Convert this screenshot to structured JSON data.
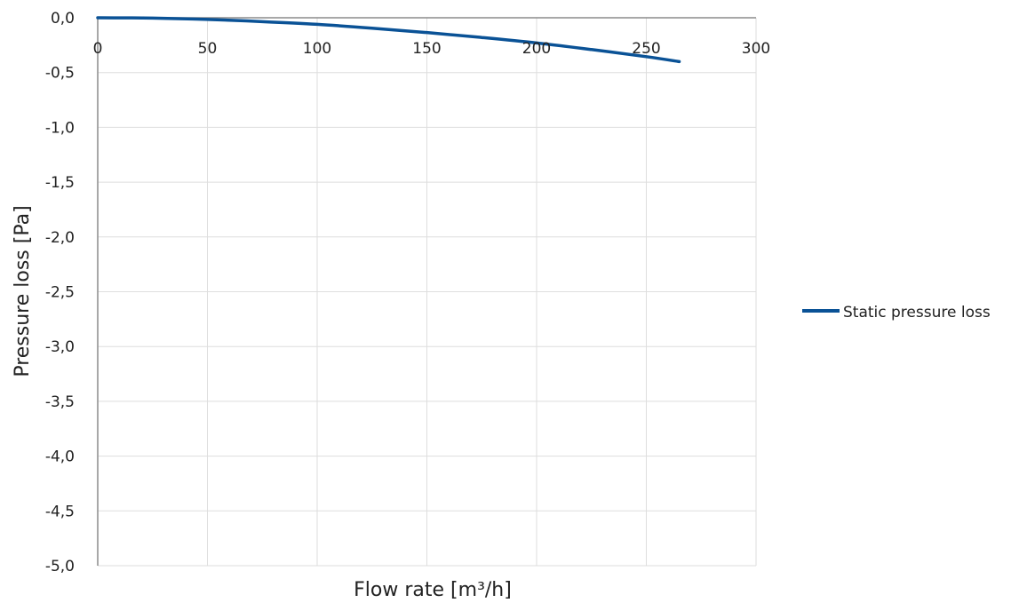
{
  "chart_data": {
    "type": "line",
    "title": "",
    "xlabel": "Flow rate [m³/h]",
    "ylabel": "Pressure loss [Pa]",
    "xlim": [
      0,
      300
    ],
    "ylim": [
      -5.0,
      0.0
    ],
    "x_ticks": [
      0,
      50,
      100,
      150,
      200,
      250,
      300
    ],
    "x_tick_labels": [
      "0",
      "50",
      "100",
      "150",
      "200",
      "250",
      "300"
    ],
    "y_ticks": [
      0.0,
      -0.5,
      -1.0,
      -1.5,
      -2.0,
      -2.5,
      -3.0,
      -3.5,
      -4.0,
      -4.5,
      -5.0
    ],
    "y_tick_labels": [
      "0,0",
      "-0,5",
      "-1,0",
      "-1,5",
      "-2,0",
      "-2,5",
      "-3,0",
      "-3,5",
      "-4,0",
      "-4,5",
      "-5,0"
    ],
    "grid": true,
    "legend_position": "right",
    "series": [
      {
        "name": "Static pressure loss",
        "color": "#0a5296",
        "x": [
          0,
          25,
          50,
          75,
          100,
          125,
          150,
          175,
          200,
          225,
          250,
          265
        ],
        "y": [
          0,
          -0.003,
          -0.015,
          -0.035,
          -0.06,
          -0.095,
          -0.135,
          -0.18,
          -0.23,
          -0.29,
          -0.355,
          -0.4
        ]
      }
    ]
  }
}
